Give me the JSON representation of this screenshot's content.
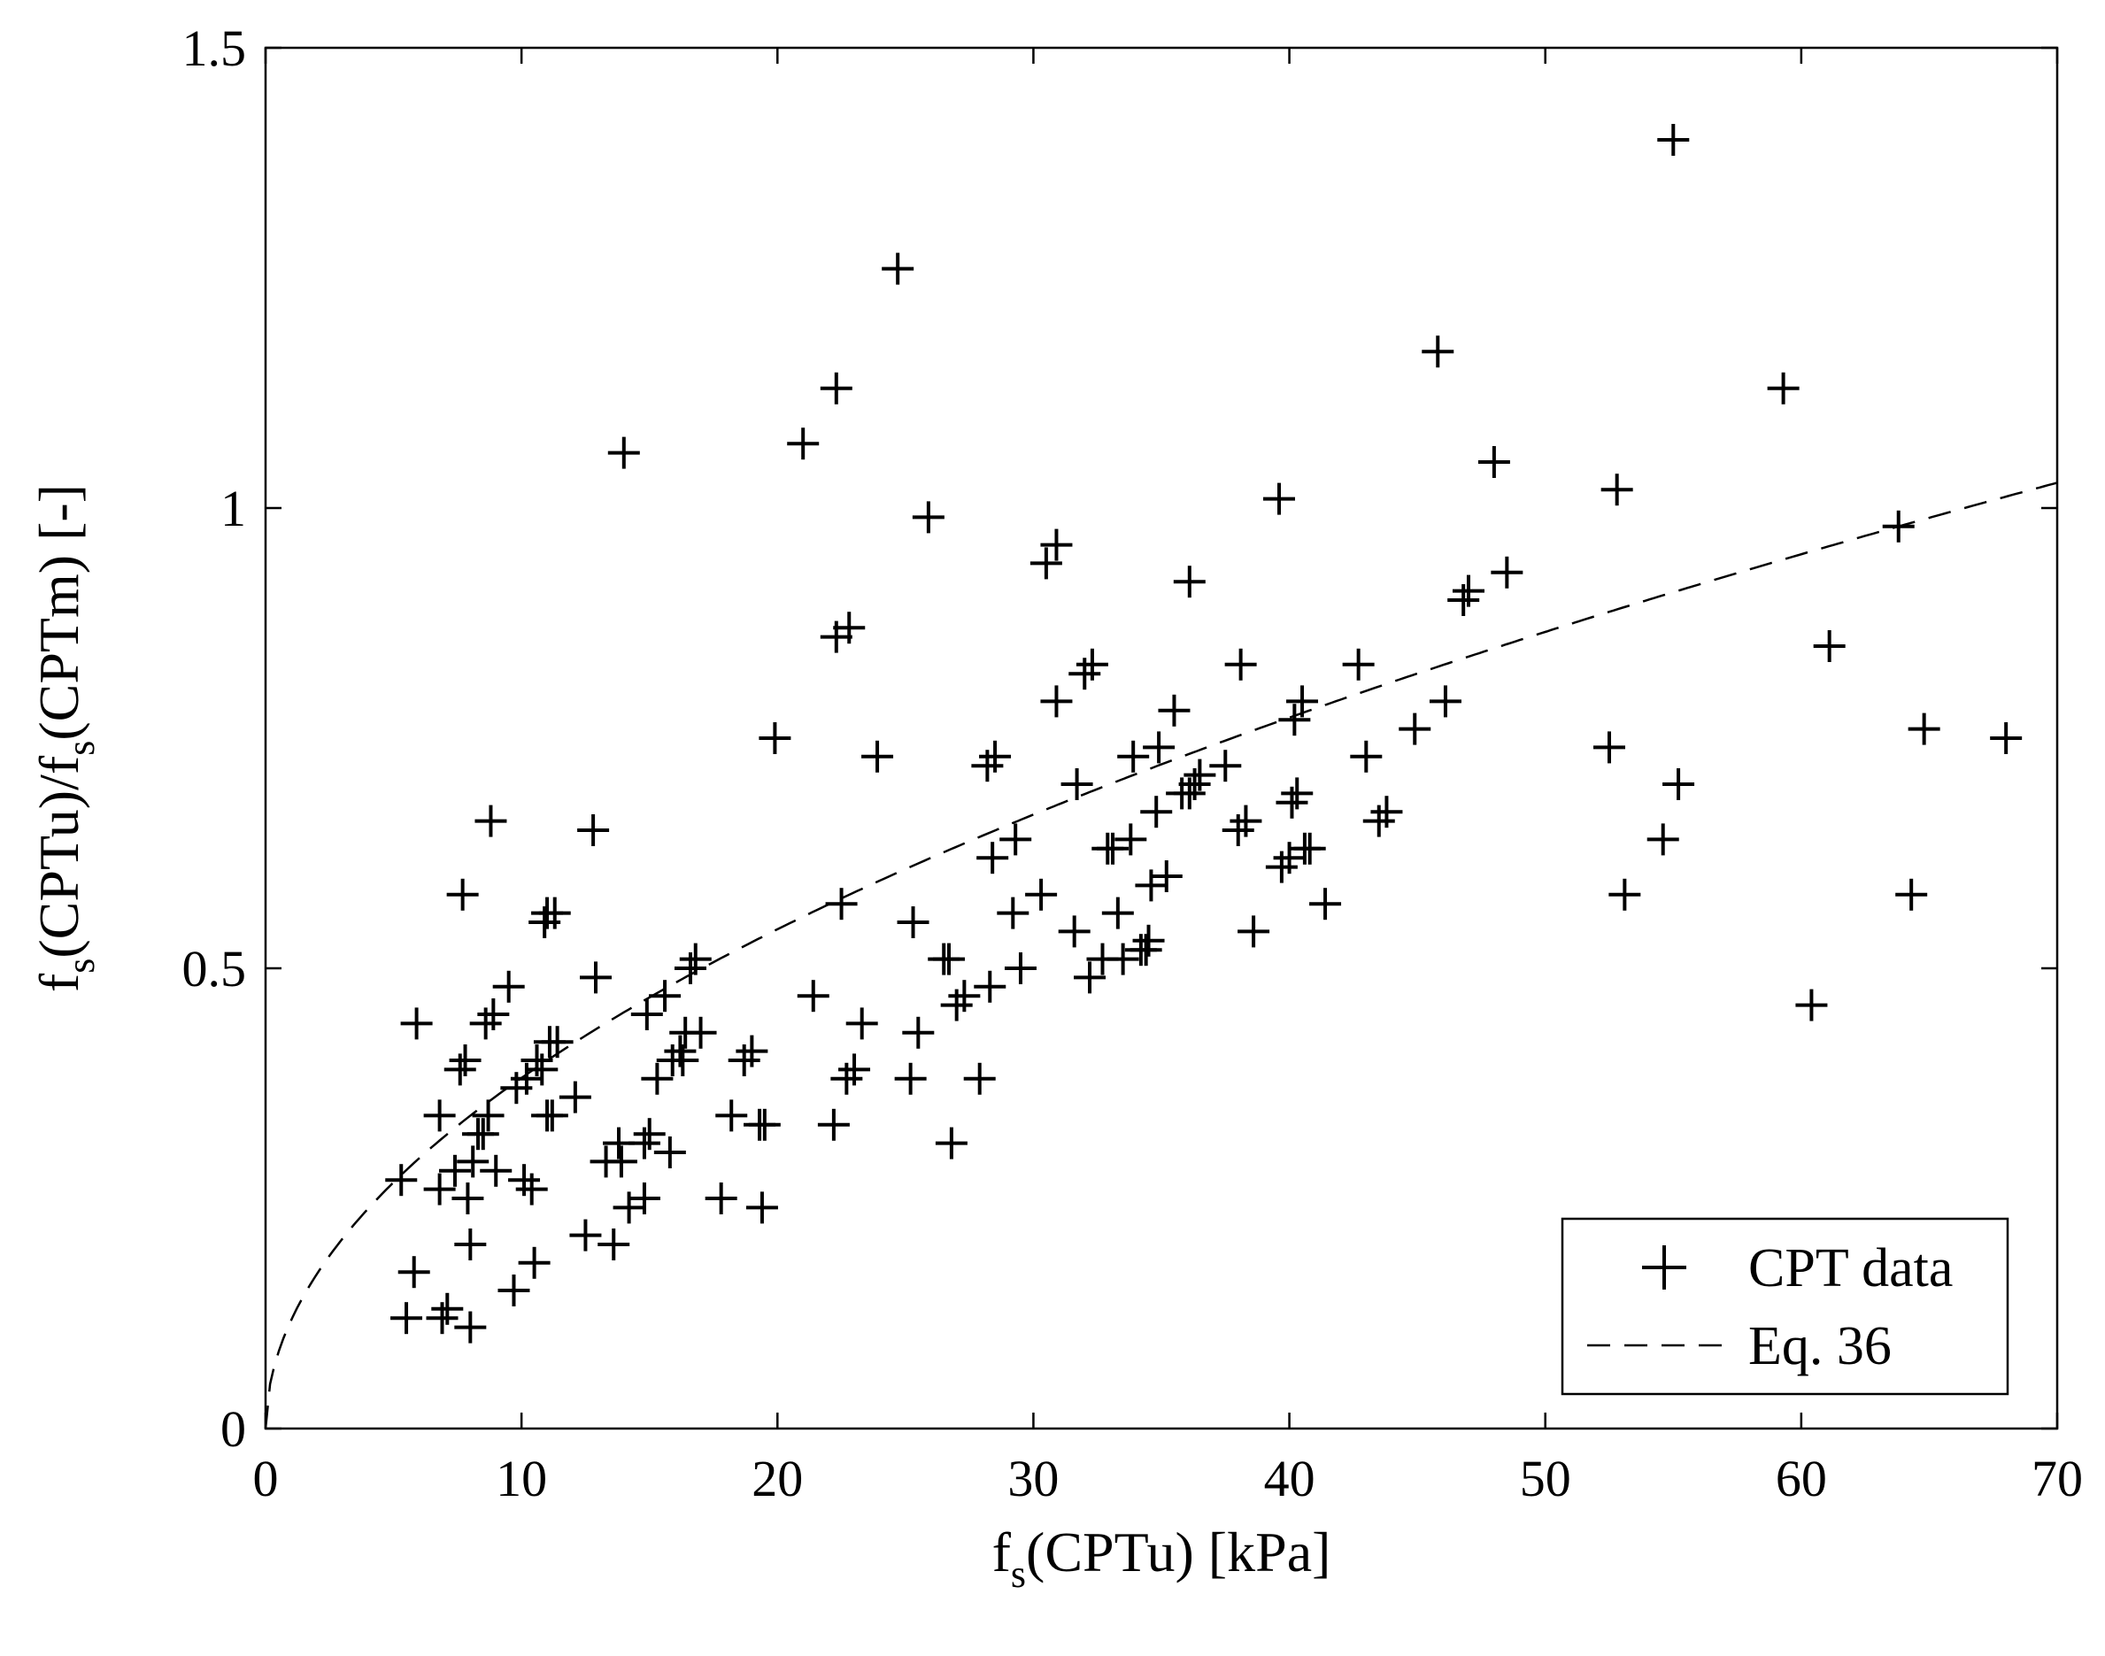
{
  "chart_data": {
    "type": "scatter",
    "title": "",
    "xlabel": "f_s(CPTu) [kPa]",
    "ylabel": "f_s(CPTu)/f_s(CPTm) [-]",
    "xlabel_parts": {
      "f": "f",
      "sub": "s",
      "rest": "(CPTu) [kPa]"
    },
    "ylabel_parts": {
      "f1": "f",
      "sub1": "s",
      "mid": "(CPTu)/f",
      "sub2": "s",
      "rest": "(CPTm) [-]"
    },
    "xlim": [
      0,
      70
    ],
    "ylim": [
      0,
      1.5
    ],
    "x_ticks": [
      0,
      10,
      20,
      30,
      40,
      50,
      60,
      70
    ],
    "y_ticks": [
      0,
      0.5,
      1,
      1.5
    ],
    "x_tick_labels": [
      "0",
      "10",
      "20",
      "30",
      "40",
      "50",
      "60",
      "70"
    ],
    "y_tick_labels": [
      "0",
      "0.5",
      "1",
      "1.5"
    ],
    "grid": false,
    "legend_position": "bottom-right",
    "series": [
      {
        "name": "CPT data",
        "marker": "plus",
        "points": [
          [
            5.3,
            0.27
          ],
          [
            5.5,
            0.12
          ],
          [
            5.8,
            0.17
          ],
          [
            5.9,
            0.44
          ],
          [
            6.8,
            0.34
          ],
          [
            6.8,
            0.26
          ],
          [
            6.9,
            0.12
          ],
          [
            7.1,
            0.13
          ],
          [
            7.4,
            0.28
          ],
          [
            7.6,
            0.39
          ],
          [
            7.7,
            0.58
          ],
          [
            7.8,
            0.4
          ],
          [
            7.9,
            0.25
          ],
          [
            8.0,
            0.2
          ],
          [
            8.0,
            0.11
          ],
          [
            8.1,
            0.29
          ],
          [
            8.3,
            0.32
          ],
          [
            8.5,
            0.32
          ],
          [
            8.6,
            0.44
          ],
          [
            8.7,
            0.34
          ],
          [
            8.8,
            0.66
          ],
          [
            8.9,
            0.45
          ],
          [
            9.0,
            0.28
          ],
          [
            9.5,
            0.48
          ],
          [
            9.7,
            0.15
          ],
          [
            9.8,
            0.37
          ],
          [
            10.1,
            0.27
          ],
          [
            10.2,
            0.38
          ],
          [
            10.4,
            0.26
          ],
          [
            10.5,
            0.18
          ],
          [
            10.6,
            0.4
          ],
          [
            10.8,
            0.39
          ],
          [
            10.9,
            0.55
          ],
          [
            11.0,
            0.34
          ],
          [
            11.0,
            0.56
          ],
          [
            11.1,
            0.42
          ],
          [
            11.2,
            0.34
          ],
          [
            11.3,
            0.56
          ],
          [
            11.4,
            0.42
          ],
          [
            12.1,
            0.36
          ],
          [
            12.5,
            0.21
          ],
          [
            12.8,
            0.65
          ],
          [
            12.9,
            0.49
          ],
          [
            13.3,
            0.29
          ],
          [
            13.6,
            0.2
          ],
          [
            13.8,
            0.31
          ],
          [
            13.9,
            0.29
          ],
          [
            14.0,
            1.06
          ],
          [
            14.2,
            0.24
          ],
          [
            14.8,
            0.25
          ],
          [
            14.8,
            0.31
          ],
          [
            14.9,
            0.45
          ],
          [
            15.0,
            0.32
          ],
          [
            15.3,
            0.38
          ],
          [
            15.6,
            0.47
          ],
          [
            15.8,
            0.3
          ],
          [
            15.9,
            0.4
          ],
          [
            16.2,
            0.41
          ],
          [
            16.3,
            0.4
          ],
          [
            16.4,
            0.43
          ],
          [
            16.6,
            0.5
          ],
          [
            16.8,
            0.51
          ],
          [
            17.0,
            0.43
          ],
          [
            17.8,
            0.25
          ],
          [
            18.2,
            0.34
          ],
          [
            18.7,
            0.4
          ],
          [
            19.0,
            0.41
          ],
          [
            19.3,
            0.33
          ],
          [
            19.4,
            0.24
          ],
          [
            19.5,
            0.33
          ],
          [
            19.9,
            0.75
          ],
          [
            21.0,
            1.07
          ],
          [
            21.4,
            0.47
          ],
          [
            22.2,
            0.33
          ],
          [
            22.3,
            0.86
          ],
          [
            22.3,
            1.13
          ],
          [
            22.5,
            0.57
          ],
          [
            22.7,
            0.38
          ],
          [
            22.8,
            0.87
          ],
          [
            23.0,
            0.39
          ],
          [
            23.3,
            0.44
          ],
          [
            23.9,
            0.73
          ],
          [
            24.7,
            1.26
          ],
          [
            25.2,
            0.38
          ],
          [
            25.3,
            0.55
          ],
          [
            25.5,
            0.43
          ],
          [
            25.9,
            0.99
          ],
          [
            26.5,
            0.51
          ],
          [
            26.7,
            0.51
          ],
          [
            26.8,
            0.31
          ],
          [
            27.0,
            0.46
          ],
          [
            27.3,
            0.47
          ],
          [
            27.9,
            0.38
          ],
          [
            28.2,
            0.72
          ],
          [
            28.3,
            0.48
          ],
          [
            28.4,
            0.62
          ],
          [
            28.5,
            0.73
          ],
          [
            29.2,
            0.56
          ],
          [
            29.3,
            0.64
          ],
          [
            29.5,
            0.5
          ],
          [
            30.3,
            0.58
          ],
          [
            30.5,
            0.94
          ],
          [
            30.9,
            0.96
          ],
          [
            30.9,
            0.79
          ],
          [
            31.6,
            0.54
          ],
          [
            31.7,
            0.7
          ],
          [
            32.0,
            0.82
          ],
          [
            32.3,
            0.83
          ],
          [
            32.2,
            0.49
          ],
          [
            32.7,
            0.51
          ],
          [
            32.9,
            0.63
          ],
          [
            33.1,
            0.63
          ],
          [
            33.3,
            0.56
          ],
          [
            33.5,
            0.51
          ],
          [
            33.8,
            0.64
          ],
          [
            33.9,
            0.73
          ],
          [
            34.2,
            0.52
          ],
          [
            34.4,
            0.52
          ],
          [
            34.5,
            0.53
          ],
          [
            34.6,
            0.59
          ],
          [
            34.8,
            0.67
          ],
          [
            34.9,
            0.74
          ],
          [
            35.2,
            0.6
          ],
          [
            35.5,
            0.78
          ],
          [
            35.8,
            0.69
          ],
          [
            36.1,
            0.92
          ],
          [
            36.1,
            0.69
          ],
          [
            36.3,
            0.7
          ],
          [
            36.5,
            0.71
          ],
          [
            37.5,
            0.72
          ],
          [
            38.0,
            0.65
          ],
          [
            38.1,
            0.83
          ],
          [
            38.3,
            0.66
          ],
          [
            38.6,
            0.54
          ],
          [
            39.6,
            1.01
          ],
          [
            39.7,
            0.61
          ],
          [
            40.0,
            0.62
          ],
          [
            40.1,
            0.68
          ],
          [
            40.2,
            0.77
          ],
          [
            40.3,
            0.69
          ],
          [
            40.5,
            0.79
          ],
          [
            40.6,
            0.63
          ],
          [
            40.8,
            0.63
          ],
          [
            41.4,
            0.57
          ],
          [
            42.7,
            0.83
          ],
          [
            43.0,
            0.73
          ],
          [
            43.5,
            0.66
          ],
          [
            43.8,
            0.67
          ],
          [
            44.9,
            0.76
          ],
          [
            45.8,
            1.17
          ],
          [
            46.1,
            0.79
          ],
          [
            46.8,
            0.9
          ],
          [
            47.0,
            0.91
          ],
          [
            48.0,
            1.05
          ],
          [
            48.5,
            0.93
          ],
          [
            52.5,
            0.74
          ],
          [
            52.8,
            1.02
          ],
          [
            53.1,
            0.58
          ],
          [
            54.6,
            0.64
          ],
          [
            55.0,
            1.4
          ],
          [
            55.2,
            0.7
          ],
          [
            59.3,
            1.13
          ],
          [
            60.4,
            0.46
          ],
          [
            61.1,
            0.85
          ],
          [
            63.8,
            0.98
          ],
          [
            64.3,
            0.58
          ],
          [
            64.8,
            0.76
          ],
          [
            68.0,
            0.75
          ]
        ]
      },
      {
        "name": "Eq. 36",
        "type": "line",
        "style": "dashed",
        "equation": "y = 0.1177 * x^0.51",
        "coef": 0.1177,
        "exponent": 0.51
      }
    ]
  }
}
